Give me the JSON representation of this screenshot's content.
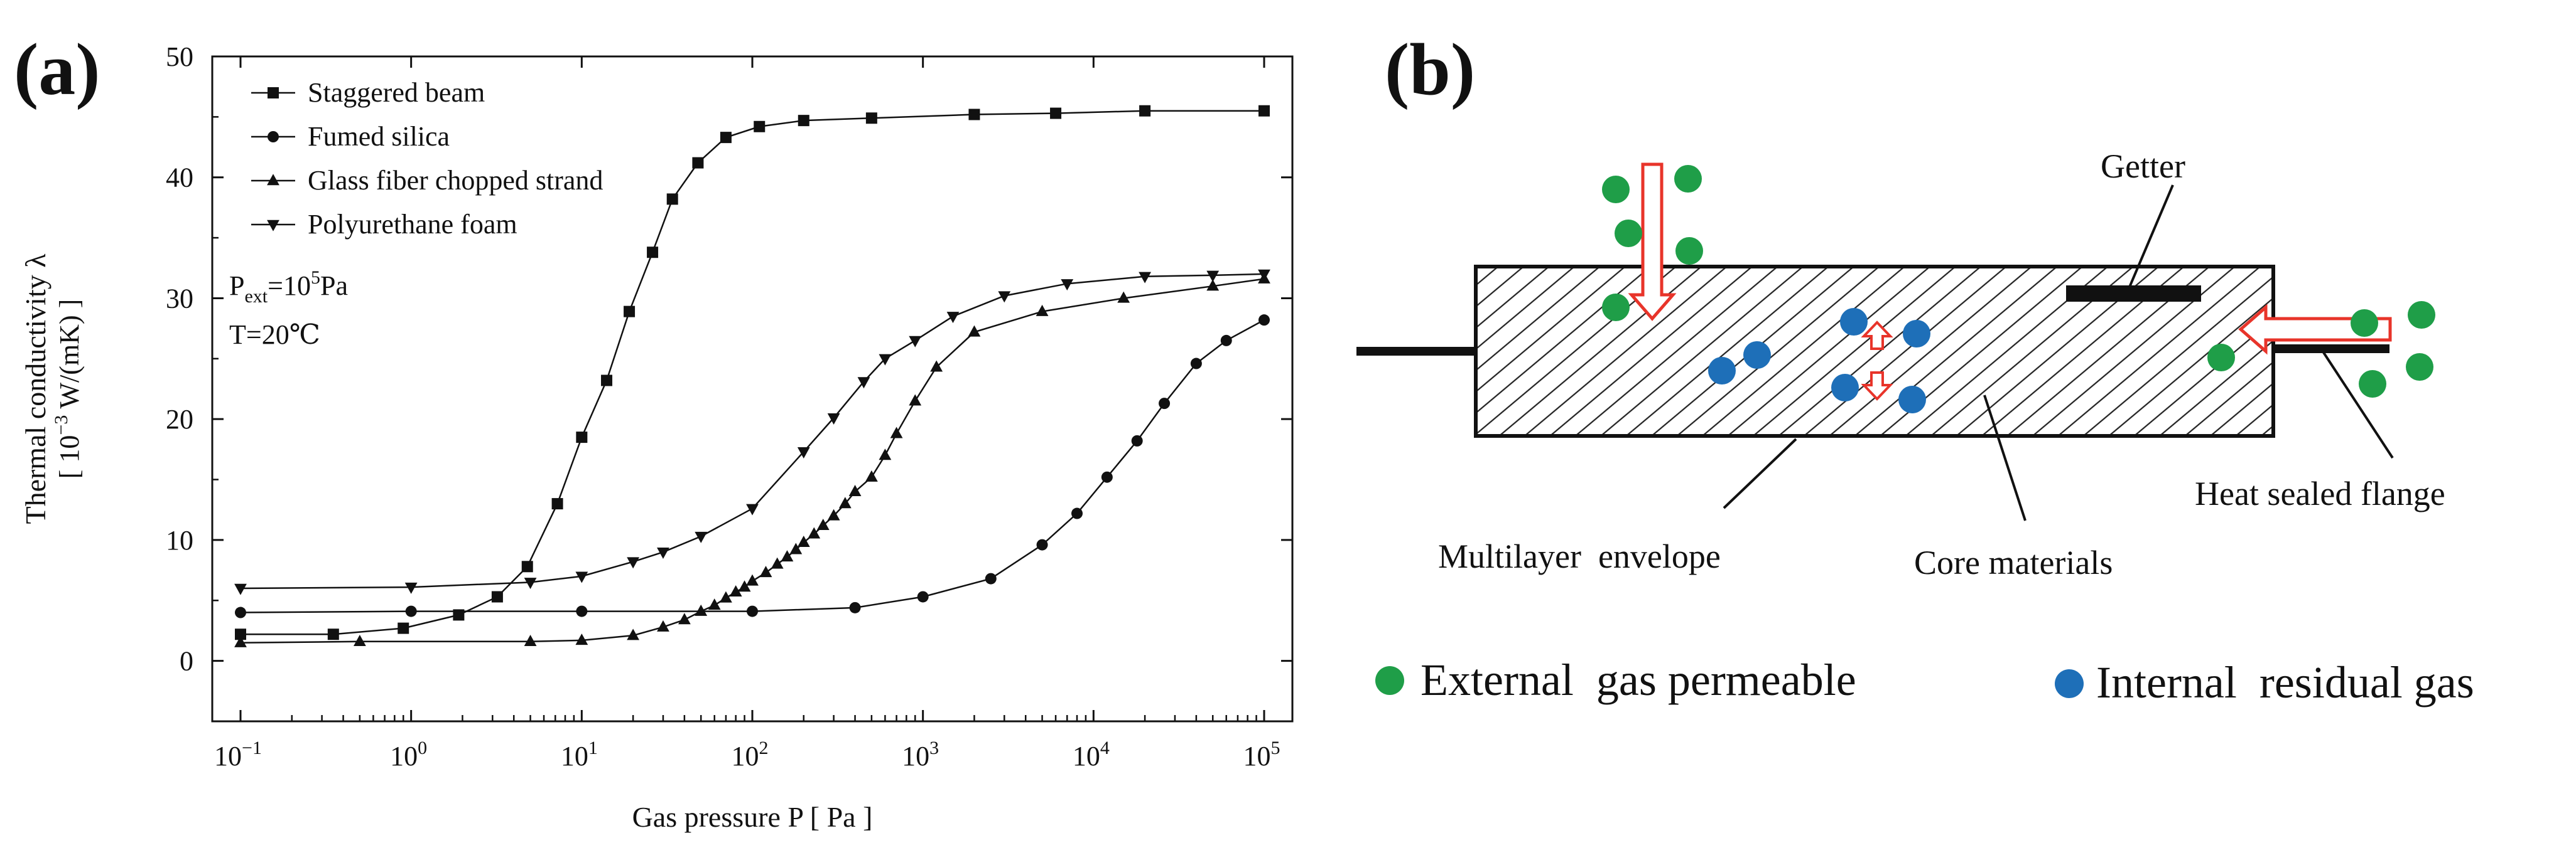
{
  "panel_a": {
    "label": "(a)",
    "legend": {
      "entries": [
        "Staggered beam",
        "Fumed silica",
        "Glass fiber chopped strand",
        "Polyurethane foam"
      ],
      "conditions": {
        "pext_main": "P",
        "pext_sub": "ext",
        "pext_eq": "=10",
        "pext_exp": "5",
        "pext_unit": "Pa",
        "temperature": "T=20℃"
      }
    }
  },
  "chart_data": {
    "type": "line",
    "xlabel": "Gas pressure P [ Pa ]",
    "ylabel_line1": "Thermal conductivity λ",
    "ylabel_line2": {
      "pre": "[ 10",
      "exp": "−3",
      "post": " W/(mK) ]"
    },
    "x_scale": "log",
    "xlim": [
      0.1,
      100000
    ],
    "ylim": [
      -5,
      50
    ],
    "x_ticks": [
      {
        "value": 0.1,
        "base": "10",
        "exp": "−1"
      },
      {
        "value": 1,
        "base": "10",
        "exp": "0"
      },
      {
        "value": 10,
        "base": "10",
        "exp": "1"
      },
      {
        "value": 100,
        "base": "10",
        "exp": "2"
      },
      {
        "value": 1000,
        "base": "10",
        "exp": "3"
      },
      {
        "value": 10000,
        "base": "10",
        "exp": "4"
      },
      {
        "value": 100000,
        "base": "10",
        "exp": "5"
      }
    ],
    "y_ticks": [
      0,
      10,
      20,
      30,
      40,
      50
    ],
    "grid": false,
    "legend_position": "top-left",
    "series": [
      {
        "name": "Staggered beam",
        "marker": "square",
        "x": [
          0.1,
          0.35,
          0.9,
          1.9,
          3.2,
          4.8,
          7.2,
          10,
          14,
          19,
          26,
          34,
          48,
          70,
          110,
          200,
          500,
          2000,
          6000,
          20000,
          100000
        ],
        "y": [
          2.2,
          2.2,
          2.7,
          3.8,
          5.3,
          7.8,
          13,
          18.5,
          23.2,
          28.9,
          33.8,
          38.2,
          41.2,
          43.3,
          44.2,
          44.7,
          44.9,
          45.2,
          45.3,
          45.5,
          45.5
        ]
      },
      {
        "name": "Fumed silica",
        "marker": "circle",
        "x": [
          0.1,
          1,
          10,
          100,
          400,
          1000,
          2500,
          5000,
          8000,
          12000,
          18000,
          26000,
          40000,
          60000,
          100000
        ],
        "y": [
          4.0,
          4.1,
          4.1,
          4.1,
          4.4,
          5.3,
          6.8,
          9.6,
          12.2,
          15.2,
          18.2,
          21.3,
          24.6,
          26.5,
          28.2
        ]
      },
      {
        "name": "Glass fiber chopped strand",
        "marker": "triangle-up",
        "x": [
          0.1,
          0.5,
          5,
          10,
          20,
          30,
          40,
          50,
          60,
          70,
          80,
          90,
          100,
          120,
          140,
          160,
          180,
          200,
          230,
          260,
          300,
          350,
          400,
          500,
          600,
          700,
          900,
          1200,
          2000,
          5000,
          15000,
          50000,
          100000
        ],
        "y": [
          1.5,
          1.6,
          1.6,
          1.7,
          2.1,
          2.8,
          3.4,
          4.1,
          4.6,
          5.2,
          5.7,
          6.1,
          6.6,
          7.3,
          8.0,
          8.6,
          9.2,
          9.8,
          10.5,
          11.2,
          12.0,
          13.0,
          14.0,
          15.2,
          17.0,
          18.8,
          21.5,
          24.3,
          27.2,
          28.9,
          30.0,
          31.0,
          31.6
        ]
      },
      {
        "name": "Polyurethane foam",
        "marker": "triangle-down",
        "x": [
          0.1,
          1,
          5,
          10,
          20,
          30,
          50,
          100,
          200,
          300,
          450,
          600,
          900,
          1500,
          3000,
          7000,
          20000,
          50000,
          100000
        ],
        "y": [
          6.0,
          6.1,
          6.5,
          7.0,
          8.2,
          9.0,
          10.3,
          12.6,
          17.3,
          20.1,
          23.1,
          25.0,
          26.5,
          28.5,
          30.2,
          31.2,
          31.8,
          31.9,
          32.0
        ]
      }
    ]
  },
  "panel_b": {
    "label": "(b)",
    "labels": {
      "getter": "Getter",
      "envelope": "Multilayer  envelope",
      "core": "Core materials",
      "flange": "Heat sealed flange"
    },
    "legend": {
      "external": "External  gas permeable",
      "internal": "Internal  residual gas"
    },
    "colors": {
      "external": "#1f9e48",
      "internal": "#1e6fb8",
      "arrow": "#e8342a"
    }
  }
}
